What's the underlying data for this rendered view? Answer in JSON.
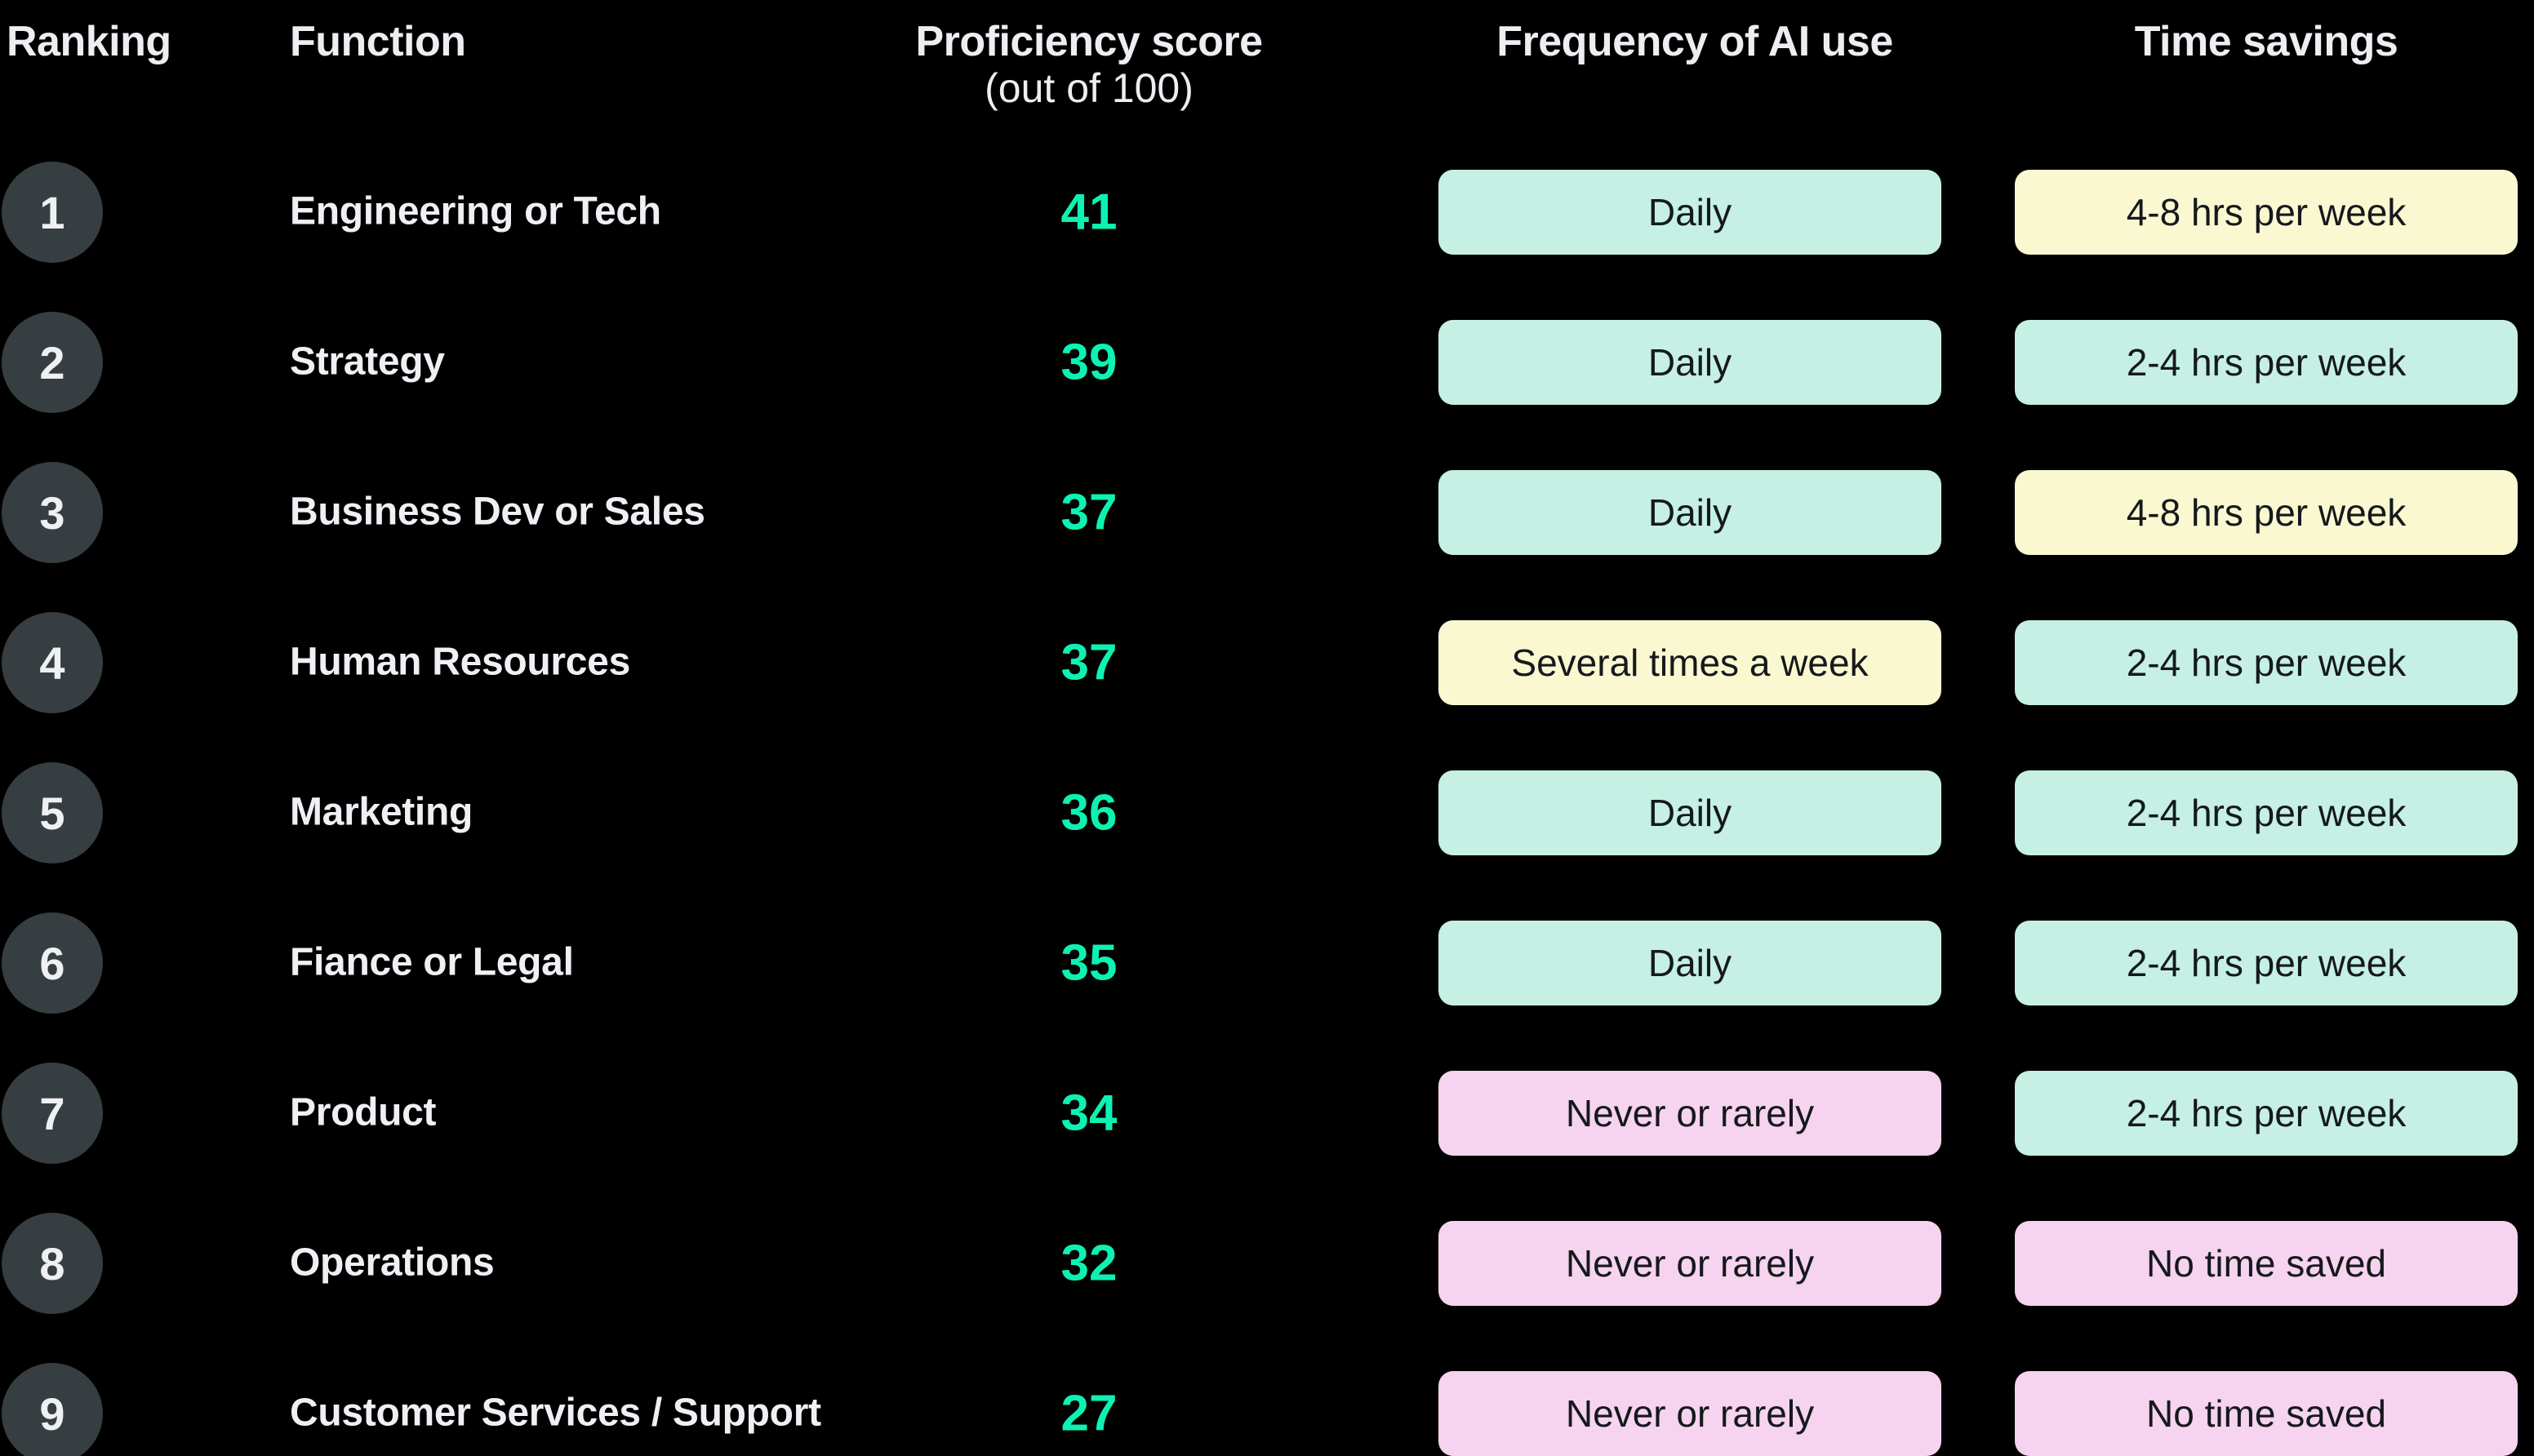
{
  "colors": {
    "background": "#000000",
    "accent_green": "#0df2b2",
    "circle_bg": "#373e41",
    "text_light": "#eef0f4",
    "badge_text": "#15191c"
  },
  "badge_colors": {
    "teal": "#c5f0e3",
    "yellow": "#faf8d0",
    "pink": "#f6d3ee"
  },
  "headers": {
    "ranking": "Ranking",
    "function": "Function",
    "score_line1": "Proficiency score",
    "score_line2": "(out of 100)",
    "frequency": "Frequency of AI use",
    "time": "Time savings"
  },
  "rows": [
    {
      "rank": "1",
      "function": "Engineering or Tech",
      "score": "41",
      "frequency": {
        "label": "Daily",
        "color": "teal"
      },
      "time": {
        "label": "4-8 hrs per week",
        "color": "yellow"
      }
    },
    {
      "rank": "2",
      "function": "Strategy",
      "score": "39",
      "frequency": {
        "label": "Daily",
        "color": "teal"
      },
      "time": {
        "label": "2-4 hrs per week",
        "color": "teal"
      }
    },
    {
      "rank": "3",
      "function": "Business Dev or Sales",
      "score": "37",
      "frequency": {
        "label": "Daily",
        "color": "teal"
      },
      "time": {
        "label": "4-8 hrs per week",
        "color": "yellow"
      }
    },
    {
      "rank": "4",
      "function": "Human Resources",
      "score": "37",
      "frequency": {
        "label": "Several times a week",
        "color": "yellow"
      },
      "time": {
        "label": "2-4 hrs per week",
        "color": "teal"
      }
    },
    {
      "rank": "5",
      "function": "Marketing",
      "score": "36",
      "frequency": {
        "label": "Daily",
        "color": "teal"
      },
      "time": {
        "label": "2-4 hrs per week",
        "color": "teal"
      }
    },
    {
      "rank": "6",
      "function": "Fiance or Legal",
      "score": "35",
      "frequency": {
        "label": "Daily",
        "color": "teal"
      },
      "time": {
        "label": "2-4 hrs per week",
        "color": "teal"
      }
    },
    {
      "rank": "7",
      "function": "Product",
      "score": "34",
      "frequency": {
        "label": "Never or rarely",
        "color": "pink"
      },
      "time": {
        "label": "2-4 hrs per week",
        "color": "teal"
      }
    },
    {
      "rank": "8",
      "function": "Operations",
      "score": "32",
      "frequency": {
        "label": "Never or rarely",
        "color": "pink"
      },
      "time": {
        "label": "No time saved",
        "color": "pink"
      }
    },
    {
      "rank": "9",
      "function": "Customer Services / Support",
      "score": "27",
      "frequency": {
        "label": "Never or rarely",
        "color": "pink"
      },
      "time": {
        "label": "No time saved",
        "color": "pink"
      }
    }
  ],
  "chart_data": {
    "type": "table",
    "title": "AI proficiency by business function",
    "columns": [
      "Ranking",
      "Function",
      "Proficiency score (out of 100)",
      "Frequency of AI use",
      "Time savings"
    ],
    "rows": [
      [
        1,
        "Engineering or Tech",
        41,
        "Daily",
        "4-8 hrs per week"
      ],
      [
        2,
        "Strategy",
        39,
        "Daily",
        "2-4 hrs per week"
      ],
      [
        3,
        "Business Dev or Sales",
        37,
        "Daily",
        "4-8 hrs per week"
      ],
      [
        4,
        "Human Resources",
        37,
        "Several times a week",
        "2-4 hrs per week"
      ],
      [
        5,
        "Marketing",
        36,
        "Daily",
        "2-4 hrs per week"
      ],
      [
        6,
        "Fiance or Legal",
        35,
        "Daily",
        "2-4 hrs per week"
      ],
      [
        7,
        "Product",
        34,
        "Never or rarely",
        "2-4 hrs per week"
      ],
      [
        8,
        "Operations",
        32,
        "Never or rarely",
        "No time saved"
      ],
      [
        9,
        "Customer Services / Support",
        27,
        "Never or rarely",
        "No time saved"
      ]
    ],
    "score_range": [
      0,
      100
    ],
    "layout": "dark background, ranked list with colored category badges",
    "badge_color_legend": {
      "teal": [
        "Daily",
        "2-4 hrs per week"
      ],
      "yellow": [
        "Several times a week",
        "4-8 hrs per week"
      ],
      "pink": [
        "Never or rarely",
        "No time saved"
      ]
    }
  }
}
